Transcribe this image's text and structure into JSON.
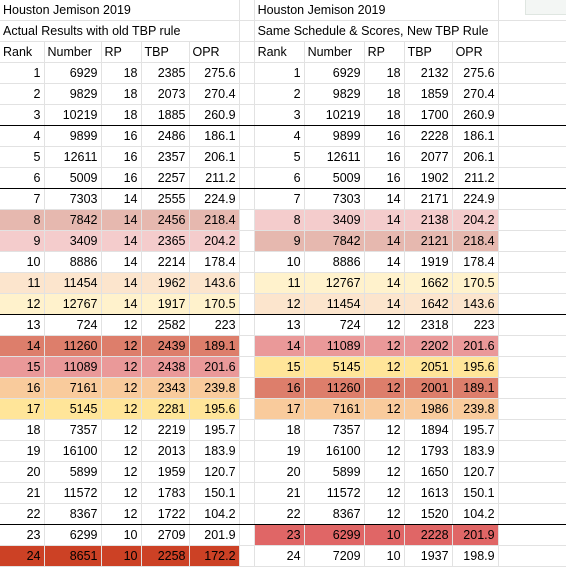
{
  "left": {
    "title": "Houston Jemison 2019",
    "subtitle": "Actual Results with old TBP rule",
    "headers": [
      "Rank",
      "Number",
      "RP",
      "TBP",
      "OPR"
    ],
    "rows": [
      {
        "rank": "1",
        "number": "6929",
        "rp": "18",
        "tbp": "2385",
        "opr": "275.6",
        "bg": ""
      },
      {
        "rank": "2",
        "number": "9829",
        "rp": "18",
        "tbp": "2073",
        "opr": "270.4",
        "bg": ""
      },
      {
        "rank": "3",
        "number": "10219",
        "rp": "18",
        "tbp": "1885",
        "opr": "260.9",
        "bg": ""
      },
      {
        "rank": "4",
        "number": "9899",
        "rp": "16",
        "tbp": "2486",
        "opr": "186.1",
        "bg": ""
      },
      {
        "rank": "5",
        "number": "12611",
        "rp": "16",
        "tbp": "2357",
        "opr": "206.1",
        "bg": ""
      },
      {
        "rank": "6",
        "number": "5009",
        "rp": "16",
        "tbp": "2257",
        "opr": "211.2",
        "bg": ""
      },
      {
        "rank": "7",
        "number": "7303",
        "rp": "14",
        "tbp": "2555",
        "opr": "224.9",
        "bg": ""
      },
      {
        "rank": "8",
        "number": "7842",
        "rp": "14",
        "tbp": "2456",
        "opr": "218.4",
        "bg": "#e6b8af"
      },
      {
        "rank": "9",
        "number": "3409",
        "rp": "14",
        "tbp": "2365",
        "opr": "204.2",
        "bg": "#f4cccc"
      },
      {
        "rank": "10",
        "number": "8886",
        "rp": "14",
        "tbp": "2214",
        "opr": "178.4",
        "bg": ""
      },
      {
        "rank": "11",
        "number": "11454",
        "rp": "14",
        "tbp": "1962",
        "opr": "143.6",
        "bg": "#fce5cd"
      },
      {
        "rank": "12",
        "number": "12767",
        "rp": "14",
        "tbp": "1917",
        "opr": "170.5",
        "bg": "#fff2cc"
      },
      {
        "rank": "13",
        "number": "724",
        "rp": "12",
        "tbp": "2582",
        "opr": "223",
        "bg": ""
      },
      {
        "rank": "14",
        "number": "11260",
        "rp": "12",
        "tbp": "2439",
        "opr": "189.1",
        "bg": "#dd7e6b"
      },
      {
        "rank": "15",
        "number": "11089",
        "rp": "12",
        "tbp": "2438",
        "opr": "201.6",
        "bg": "#ea9999"
      },
      {
        "rank": "16",
        "number": "7161",
        "rp": "12",
        "tbp": "2343",
        "opr": "239.8",
        "bg": "#f9cb9c"
      },
      {
        "rank": "17",
        "number": "5145",
        "rp": "12",
        "tbp": "2281",
        "opr": "195.6",
        "bg": "#ffe599"
      },
      {
        "rank": "18",
        "number": "7357",
        "rp": "12",
        "tbp": "2219",
        "opr": "195.7",
        "bg": ""
      },
      {
        "rank": "19",
        "number": "16100",
        "rp": "12",
        "tbp": "2013",
        "opr": "183.9",
        "bg": ""
      },
      {
        "rank": "20",
        "number": "5899",
        "rp": "12",
        "tbp": "1959",
        "opr": "120.7",
        "bg": ""
      },
      {
        "rank": "21",
        "number": "11572",
        "rp": "12",
        "tbp": "1783",
        "opr": "150.1",
        "bg": ""
      },
      {
        "rank": "22",
        "number": "8367",
        "rp": "12",
        "tbp": "1722",
        "opr": "104.2",
        "bg": ""
      },
      {
        "rank": "23",
        "number": "6299",
        "rp": "10",
        "tbp": "2709",
        "opr": "201.9",
        "bg": ""
      },
      {
        "rank": "24",
        "number": "8651",
        "rp": "10",
        "tbp": "2258",
        "opr": "172.2",
        "bg": "#cc4125"
      }
    ]
  },
  "right": {
    "title": "Houston Jemison 2019",
    "subtitle": "Same Schedule & Scores, New TBP Rule",
    "headers": [
      "Rank",
      "Number",
      "RP",
      "TBP",
      "OPR"
    ],
    "rows": [
      {
        "rank": "1",
        "number": "6929",
        "rp": "18",
        "tbp": "2132",
        "opr": "275.6",
        "bg": ""
      },
      {
        "rank": "2",
        "number": "9829",
        "rp": "18",
        "tbp": "1859",
        "opr": "270.4",
        "bg": ""
      },
      {
        "rank": "3",
        "number": "10219",
        "rp": "18",
        "tbp": "1700",
        "opr": "260.9",
        "bg": ""
      },
      {
        "rank": "4",
        "number": "9899",
        "rp": "16",
        "tbp": "2228",
        "opr": "186.1",
        "bg": ""
      },
      {
        "rank": "5",
        "number": "12611",
        "rp": "16",
        "tbp": "2077",
        "opr": "206.1",
        "bg": ""
      },
      {
        "rank": "6",
        "number": "5009",
        "rp": "16",
        "tbp": "1902",
        "opr": "211.2",
        "bg": ""
      },
      {
        "rank": "7",
        "number": "7303",
        "rp": "14",
        "tbp": "2171",
        "opr": "224.9",
        "bg": ""
      },
      {
        "rank": "8",
        "number": "3409",
        "rp": "14",
        "tbp": "2138",
        "opr": "204.2",
        "bg": "#f4cccc"
      },
      {
        "rank": "9",
        "number": "7842",
        "rp": "14",
        "tbp": "2121",
        "opr": "218.4",
        "bg": "#e6b8af"
      },
      {
        "rank": "10",
        "number": "8886",
        "rp": "14",
        "tbp": "1919",
        "opr": "178.4",
        "bg": ""
      },
      {
        "rank": "11",
        "number": "12767",
        "rp": "14",
        "tbp": "1662",
        "opr": "170.5",
        "bg": "#fff2cc"
      },
      {
        "rank": "12",
        "number": "11454",
        "rp": "14",
        "tbp": "1642",
        "opr": "143.6",
        "bg": "#fce5cd"
      },
      {
        "rank": "13",
        "number": "724",
        "rp": "12",
        "tbp": "2318",
        "opr": "223",
        "bg": ""
      },
      {
        "rank": "14",
        "number": "11089",
        "rp": "12",
        "tbp": "2202",
        "opr": "201.6",
        "bg": "#ea9999"
      },
      {
        "rank": "15",
        "number": "5145",
        "rp": "12",
        "tbp": "2051",
        "opr": "195.6",
        "bg": "#ffe599"
      },
      {
        "rank": "16",
        "number": "11260",
        "rp": "12",
        "tbp": "2001",
        "opr": "189.1",
        "bg": "#dd7e6b"
      },
      {
        "rank": "17",
        "number": "7161",
        "rp": "12",
        "tbp": "1986",
        "opr": "239.8",
        "bg": "#f9cb9c"
      },
      {
        "rank": "18",
        "number": "7357",
        "rp": "12",
        "tbp": "1894",
        "opr": "195.7",
        "bg": ""
      },
      {
        "rank": "19",
        "number": "16100",
        "rp": "12",
        "tbp": "1793",
        "opr": "183.9",
        "bg": ""
      },
      {
        "rank": "20",
        "number": "5899",
        "rp": "12",
        "tbp": "1650",
        "opr": "120.7",
        "bg": ""
      },
      {
        "rank": "21",
        "number": "11572",
        "rp": "12",
        "tbp": "1613",
        "opr": "150.1",
        "bg": ""
      },
      {
        "rank": "22",
        "number": "8367",
        "rp": "12",
        "tbp": "1520",
        "opr": "104.2",
        "bg": ""
      },
      {
        "rank": "23",
        "number": "6299",
        "rp": "10",
        "tbp": "2228",
        "opr": "201.9",
        "bg": "#e06666"
      },
      {
        "rank": "24",
        "number": "7209",
        "rp": "10",
        "tbp": "1937",
        "opr": "198.9",
        "bg": ""
      }
    ]
  }
}
